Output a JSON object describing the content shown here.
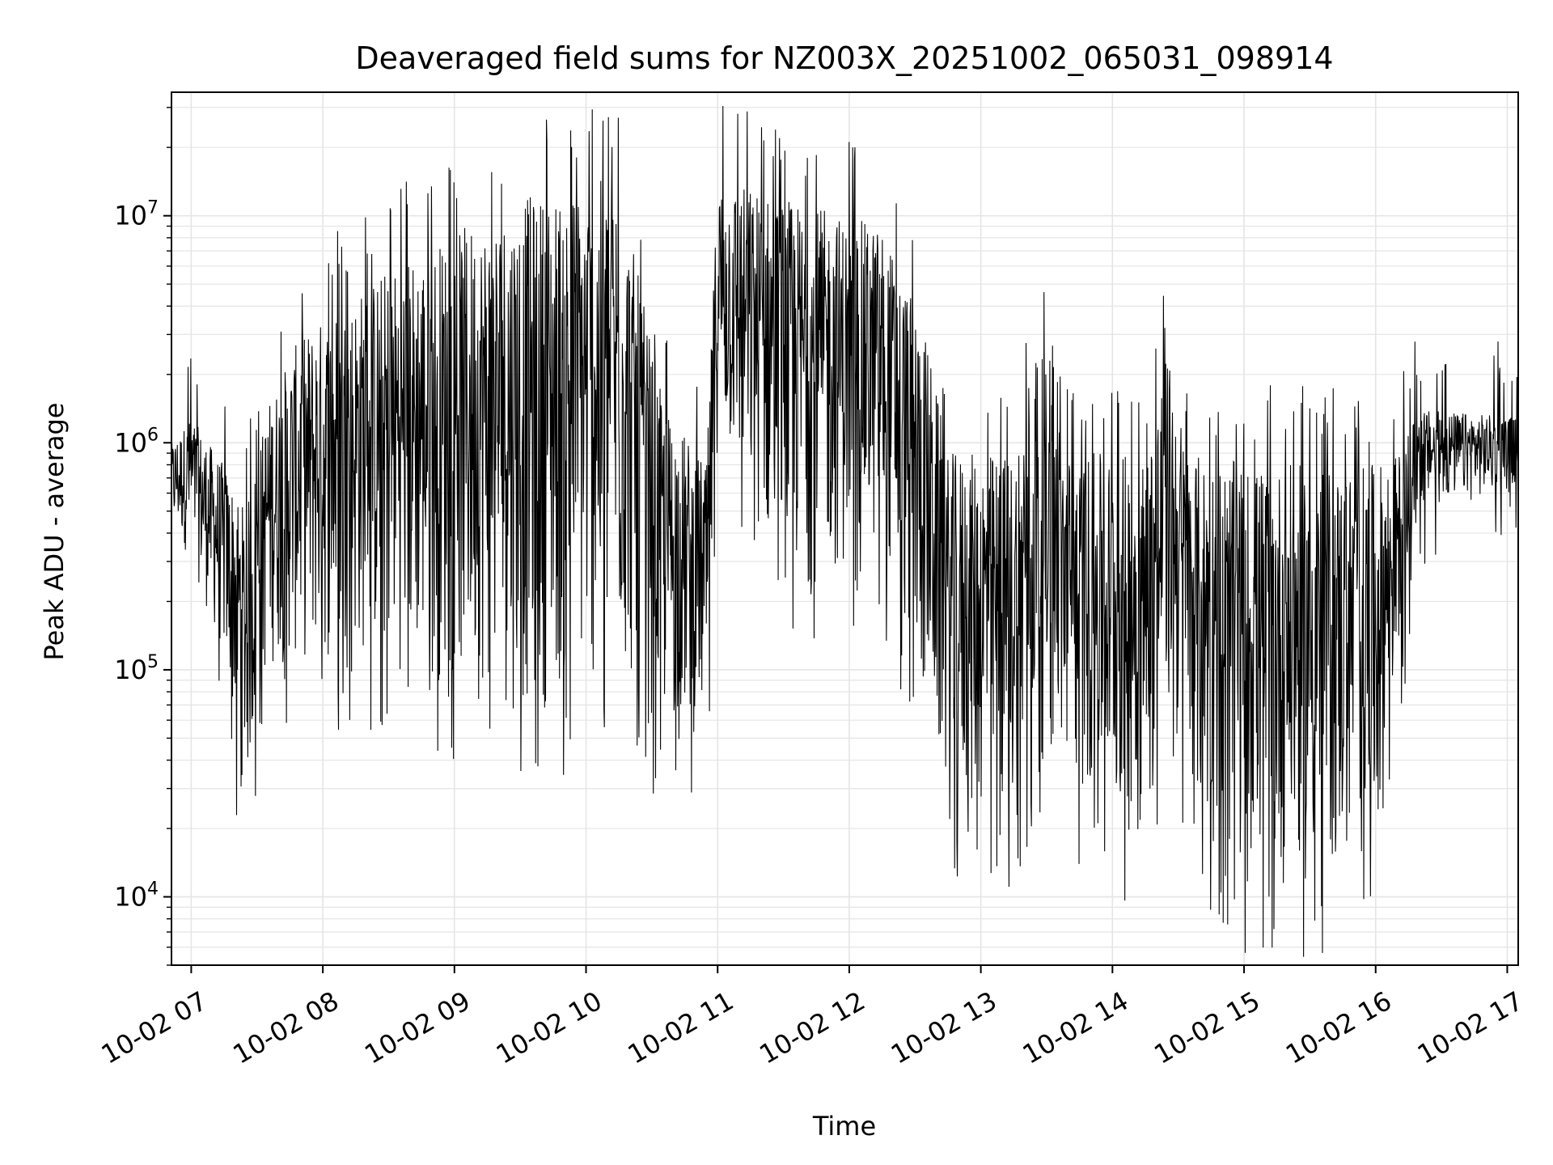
{
  "chart_data": {
    "type": "line",
    "title": "Deaveraged field sums for NZ003X_20251002_065031_098914",
    "xlabel": "Time",
    "ylabel": "Peak ADU - average",
    "y_scale": "log",
    "ylim": [
      5000,
      35000000
    ],
    "xlim": [
      "2025-10-02 06:51",
      "2025-10-02 17:05"
    ],
    "grid": true,
    "line_color": "#000000",
    "grid_color": "#e5e5e5",
    "x_ticks": [
      {
        "t": "2025-10-02 07:00",
        "label": "10-02 07"
      },
      {
        "t": "2025-10-02 08:00",
        "label": "10-02 08"
      },
      {
        "t": "2025-10-02 09:00",
        "label": "10-02 09"
      },
      {
        "t": "2025-10-02 10:00",
        "label": "10-02 10"
      },
      {
        "t": "2025-10-02 11:00",
        "label": "10-02 11"
      },
      {
        "t": "2025-10-02 12:00",
        "label": "10-02 12"
      },
      {
        "t": "2025-10-02 13:00",
        "label": "10-02 13"
      },
      {
        "t": "2025-10-02 14:00",
        "label": "10-02 14"
      },
      {
        "t": "2025-10-02 15:00",
        "label": "10-02 15"
      },
      {
        "t": "2025-10-02 16:00",
        "label": "10-02 16"
      },
      {
        "t": "2025-10-02 17:00",
        "label": "10-02 17"
      }
    ],
    "y_ticks": [
      {
        "value": 10000,
        "mantissa": "10",
        "exponent": "4"
      },
      {
        "value": 100000,
        "mantissa": "10",
        "exponent": "5"
      },
      {
        "value": 1000000,
        "mantissa": "10",
        "exponent": "6"
      },
      {
        "value": 10000000,
        "mantissa": "10",
        "exponent": "7"
      }
    ],
    "series_profile": {
      "description_points": [
        {
          "t": "2025-10-02 06:51",
          "upper": 1000000,
          "lower": 400000
        },
        {
          "t": "2025-10-02 07:00",
          "upper": 1300000,
          "lower": 300000
        },
        {
          "t": "2025-10-02 07:15",
          "upper": 800000,
          "lower": 100000
        },
        {
          "t": "2025-10-02 07:25",
          "upper": 500000,
          "lower": 25000
        },
        {
          "t": "2025-10-02 07:35",
          "upper": 1500000,
          "lower": 100000
        },
        {
          "t": "2025-10-02 07:50",
          "upper": 3000000,
          "lower": 100000
        },
        {
          "t": "2025-10-02 08:30",
          "upper": 6000000,
          "lower": 100000
        },
        {
          "t": "2025-10-02 09:30",
          "upper": 12000000,
          "lower": 60000
        },
        {
          "t": "2025-10-02 10:15",
          "upper": 15000000,
          "lower": 80000
        },
        {
          "t": "2025-10-02 10:35",
          "upper": 1500000,
          "lower": 50000
        },
        {
          "t": "2025-10-02 10:55",
          "upper": 800000,
          "lower": 50000
        },
        {
          "t": "2025-10-02 11:00",
          "upper": 15000000,
          "lower": 1000000
        },
        {
          "t": "2025-10-02 11:30",
          "upper": 12000000,
          "lower": 200000
        },
        {
          "t": "2025-10-02 12:15",
          "upper": 9000000,
          "lower": 300000
        },
        {
          "t": "2025-10-02 12:35",
          "upper": 3000000,
          "lower": 60000
        },
        {
          "t": "2025-10-02 12:45",
          "upper": 900000,
          "lower": 20000
        },
        {
          "t": "2025-10-02 13:15",
          "upper": 900000,
          "lower": 20000
        },
        {
          "t": "2025-10-02 13:25",
          "upper": 3000000,
          "lower": 40000
        },
        {
          "t": "2025-10-02 13:40",
          "upper": 900000,
          "lower": 30000
        },
        {
          "t": "2025-10-02 14:15",
          "upper": 900000,
          "lower": 15000
        },
        {
          "t": "2025-10-02 14:25",
          "upper": 2500000,
          "lower": 60000
        },
        {
          "t": "2025-10-02 14:35",
          "upper": 900000,
          "lower": 20000
        },
        {
          "t": "2025-10-02 15:05",
          "upper": 800000,
          "lower": 10000
        },
        {
          "t": "2025-10-02 16:00",
          "upper": 800000,
          "lower": 12000
        },
        {
          "t": "2025-10-02 16:10",
          "upper": 900000,
          "lower": 100000
        },
        {
          "t": "2025-10-02 16:20",
          "upper": 1400000,
          "lower": 500000
        },
        {
          "t": "2025-10-02 17:05",
          "upper": 1300000,
          "lower": 600000
        }
      ]
    }
  }
}
